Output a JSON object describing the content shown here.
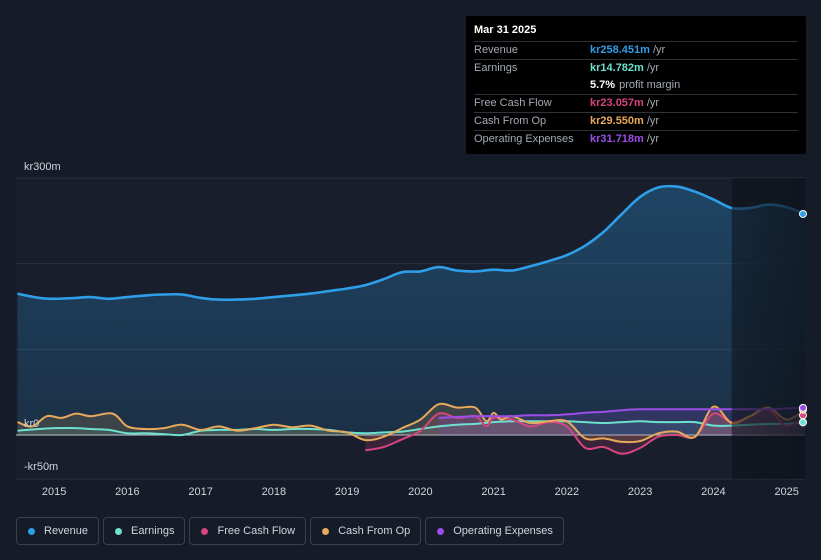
{
  "tooltip": {
    "date": "Mar 31 2025",
    "rows": [
      {
        "label": "Revenue",
        "value": "kr258.451m",
        "unit": "/yr",
        "color": "#2f9ee8"
      },
      {
        "label": "Earnings",
        "value": "kr14.782m",
        "unit": "/yr",
        "color": "#6ee0cd"
      },
      {
        "label": "",
        "value": "5.7%",
        "unit": "profit margin",
        "color": "#ffffff"
      },
      {
        "label": "Free Cash Flow",
        "value": "kr23.057m",
        "unit": "/yr",
        "color": "#d6457e"
      },
      {
        "label": "Cash From Op",
        "value": "kr29.550m",
        "unit": "/yr",
        "color": "#e8a95a"
      },
      {
        "label": "Operating Expenses",
        "value": "kr31.718m",
        "unit": "/yr",
        "color": "#9b4ee8"
      }
    ]
  },
  "legend": [
    {
      "label": "Revenue",
      "color": "#2f9ee8"
    },
    {
      "label": "Earnings",
      "color": "#6ee0cd"
    },
    {
      "label": "Free Cash Flow",
      "color": "#d6457e"
    },
    {
      "label": "Cash From Op",
      "color": "#e8a95a"
    },
    {
      "label": "Operating Expenses",
      "color": "#9b4ee8"
    }
  ],
  "chart_data": {
    "type": "area",
    "title": "",
    "xlabel": "",
    "ylabel": "",
    "ylim": [
      -50,
      300
    ],
    "xlim": [
      2014.48,
      2025.25
    ],
    "y_tick_labels": [
      "kr300m",
      "kr0",
      "-kr50m"
    ],
    "x_tick_labels": [
      "2015",
      "2016",
      "2017",
      "2018",
      "2019",
      "2020",
      "2021",
      "2022",
      "2023",
      "2024",
      "2025"
    ],
    "forecast_shade_start": 2024.25,
    "series": [
      {
        "name": "Revenue",
        "color": "#2f9ee8",
        "x": [
          2014.5,
          2014.8,
          2015.0,
          2015.3,
          2015.5,
          2015.75,
          2016.0,
          2016.25,
          2016.5,
          2016.75,
          2017.0,
          2017.25,
          2017.5,
          2017.75,
          2018.0,
          2018.25,
          2018.5,
          2018.75,
          2019.0,
          2019.25,
          2019.5,
          2019.75,
          2020.0,
          2020.25,
          2020.5,
          2020.75,
          2021.0,
          2021.25,
          2021.5,
          2021.75,
          2022.0,
          2022.25,
          2022.5,
          2022.75,
          2023.0,
          2023.25,
          2023.5,
          2023.75,
          2024.0,
          2024.25,
          2024.5,
          2024.75,
          2025.0,
          2025.25
        ],
        "values": [
          165,
          160,
          159,
          160,
          161,
          159,
          161,
          163,
          164,
          164,
          160,
          158,
          158,
          159,
          161,
          163,
          165,
          168,
          171,
          175,
          182,
          190,
          191,
          196,
          192,
          191,
          193,
          192,
          197,
          203,
          210,
          221,
          237,
          258,
          278,
          289,
          290,
          284,
          275,
          265,
          265,
          269,
          266,
          258
        ]
      },
      {
        "name": "Earnings",
        "color": "#6ee0cd",
        "x": [
          2014.5,
          2014.8,
          2015.0,
          2015.3,
          2015.5,
          2015.75,
          2016.0,
          2016.25,
          2016.5,
          2016.75,
          2017.0,
          2017.25,
          2017.5,
          2017.75,
          2018.0,
          2018.25,
          2018.5,
          2018.75,
          2019.0,
          2019.25,
          2019.5,
          2019.75,
          2020.0,
          2020.25,
          2020.5,
          2020.75,
          2021.0,
          2021.25,
          2021.5,
          2021.75,
          2022.0,
          2022.25,
          2022.5,
          2022.75,
          2023.0,
          2023.25,
          2023.5,
          2023.75,
          2024.0,
          2024.25,
          2024.5,
          2024.75,
          2025.0,
          2025.25
        ],
        "values": [
          5,
          7,
          8,
          8,
          7,
          6,
          2,
          2,
          1,
          0,
          5,
          6,
          6,
          7,
          6,
          7,
          7,
          6,
          3,
          2,
          3,
          4,
          7,
          10,
          12,
          13,
          15,
          16,
          16,
          16,
          16,
          15,
          14,
          15,
          16,
          15,
          15,
          15,
          11,
          11,
          12,
          13,
          13,
          14.8
        ]
      },
      {
        "name": "Free Cash Flow",
        "color": "#d6457e",
        "x": [
          2019.25,
          2019.5,
          2019.75,
          2020.0,
          2020.25,
          2020.5,
          2020.75,
          2020.9,
          2021.0,
          2021.25,
          2021.5,
          2021.75,
          2022.0,
          2022.25,
          2022.5,
          2022.75,
          2023.0,
          2023.25,
          2023.5,
          2023.75,
          2024.0,
          2024.25,
          2024.5,
          2024.75,
          2025.0,
          2025.25
        ],
        "values": [
          -18,
          -14,
          -5,
          5,
          25,
          20,
          22,
          10,
          20,
          18,
          10,
          15,
          10,
          -15,
          -14,
          -22,
          -15,
          -2,
          0,
          -2,
          25,
          15,
          22,
          30,
          10,
          23
        ]
      },
      {
        "name": "Cash From Op",
        "color": "#e8a95a",
        "x": [
          2014.5,
          2014.7,
          2014.9,
          2015.1,
          2015.3,
          2015.5,
          2015.8,
          2016.0,
          2016.25,
          2016.5,
          2016.75,
          2017.0,
          2017.25,
          2017.5,
          2017.75,
          2018.0,
          2018.25,
          2018.5,
          2018.75,
          2019.0,
          2019.25,
          2019.5,
          2019.75,
          2020.0,
          2020.25,
          2020.5,
          2020.75,
          2020.9,
          2021.0,
          2021.1,
          2021.25,
          2021.5,
          2021.75,
          2022.0,
          2022.25,
          2022.5,
          2022.75,
          2023.0,
          2023.25,
          2023.5,
          2023.75,
          2024.0,
          2024.25,
          2024.5,
          2024.75,
          2025.0,
          2025.25
        ],
        "values": [
          15,
          10,
          22,
          20,
          25,
          22,
          25,
          10,
          7,
          8,
          12,
          6,
          10,
          5,
          8,
          12,
          9,
          11,
          5,
          3,
          -6,
          -2,
          8,
          18,
          36,
          32,
          32,
          16,
          26,
          18,
          22,
          14,
          16,
          16,
          -4,
          -4,
          -8,
          -7,
          2,
          4,
          -2,
          33,
          14,
          22,
          32,
          18,
          29.5
        ]
      },
      {
        "name": "Operating Expenses",
        "color": "#9b4ee8",
        "x": [
          2020.25,
          2020.5,
          2020.75,
          2021.0,
          2021.25,
          2021.5,
          2021.75,
          2022.0,
          2022.25,
          2022.5,
          2022.75,
          2023.0,
          2023.25,
          2023.5,
          2023.75,
          2024.0,
          2024.25,
          2024.5,
          2024.75,
          2025.0,
          2025.25
        ],
        "values": [
          20,
          21,
          22,
          22,
          22,
          23,
          23,
          24,
          26,
          27,
          29,
          30,
          30,
          30,
          30,
          30,
          30,
          30,
          30,
          31,
          31.7
        ]
      }
    ]
  }
}
